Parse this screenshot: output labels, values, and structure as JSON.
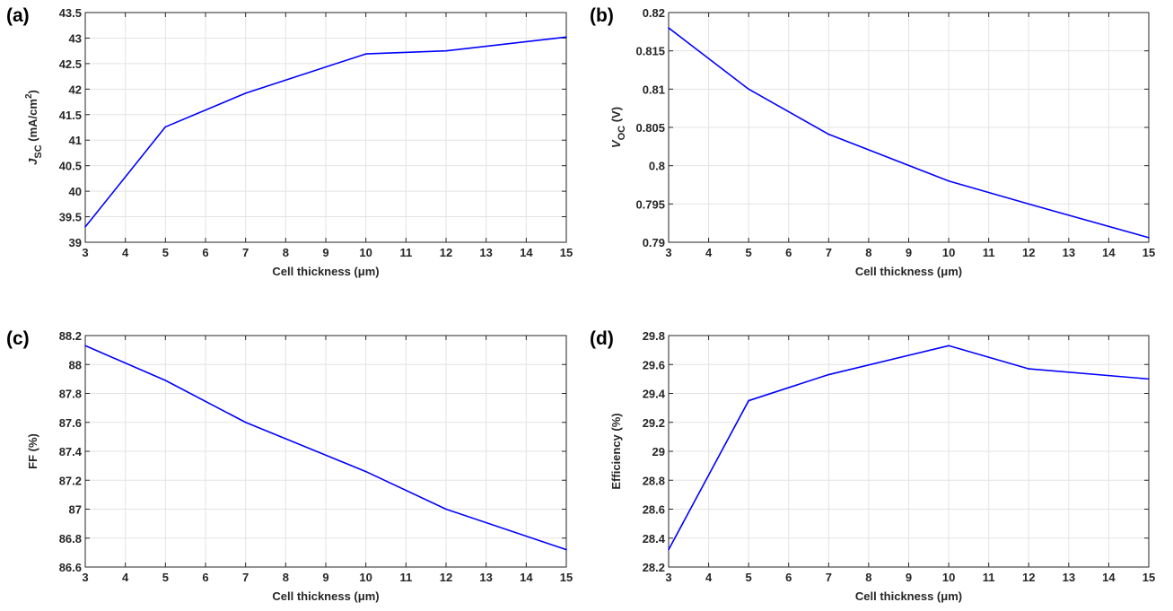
{
  "colors": {
    "series": "#0000ff",
    "axis": "#262626",
    "grid": "#e3e3e3"
  },
  "chart_data": [
    {
      "panel_label": "(a)",
      "type": "line",
      "xlabel": "Cell thickness (μm)",
      "ylabel": {
        "main": "J",
        "sub": "SC",
        "unit": " (mA/cm",
        "sup": "2",
        "close": ")"
      },
      "xlim": [
        3,
        15
      ],
      "ylim": [
        39,
        43.5
      ],
      "xticks": [
        3,
        4,
        5,
        6,
        7,
        8,
        9,
        10,
        11,
        12,
        13,
        14,
        15
      ],
      "yticks": [
        39,
        39.5,
        40,
        40.5,
        41,
        41.5,
        42,
        42.5,
        43,
        43.5
      ],
      "grid": true,
      "series": [
        {
          "x": [
            3,
            5,
            7,
            10,
            12,
            15
          ],
          "y": [
            39.3,
            41.26,
            41.92,
            42.69,
            42.75,
            43.02
          ]
        }
      ]
    },
    {
      "panel_label": "(b)",
      "type": "line",
      "xlabel": "Cell thickness (μm)",
      "ylabel": {
        "main": "V",
        "sub": "OC",
        "unit": " (V)",
        "sup": "",
        "close": ""
      },
      "xlim": [
        3,
        15
      ],
      "ylim": [
        0.79,
        0.82
      ],
      "xticks": [
        3,
        4,
        5,
        6,
        7,
        8,
        9,
        10,
        11,
        12,
        13,
        14,
        15
      ],
      "yticks": [
        0.79,
        0.795,
        0.8,
        0.805,
        0.81,
        0.815,
        0.82
      ],
      "grid": true,
      "series": [
        {
          "x": [
            3,
            5,
            7,
            10,
            12,
            15
          ],
          "y": [
            0.818,
            0.81,
            0.8041,
            0.798,
            0.795,
            0.7906
          ]
        }
      ]
    },
    {
      "panel_label": "(c)",
      "type": "line",
      "xlabel": "Cell thickness (μm)",
      "ylabel": {
        "main": "FF (%)",
        "sub": "",
        "unit": "",
        "sup": "",
        "close": ""
      },
      "xlim": [
        3,
        15
      ],
      "ylim": [
        86.6,
        88.2
      ],
      "xticks": [
        3,
        4,
        5,
        6,
        7,
        8,
        9,
        10,
        11,
        12,
        13,
        14,
        15
      ],
      "yticks": [
        86.6,
        86.8,
        87,
        87.2,
        87.4,
        87.6,
        87.8,
        88,
        88.2
      ],
      "grid": true,
      "series": [
        {
          "x": [
            3,
            5,
            7,
            10,
            12,
            15
          ],
          "y": [
            88.13,
            87.89,
            87.6,
            87.26,
            87.0,
            86.72
          ]
        }
      ]
    },
    {
      "panel_label": "(d)",
      "type": "line",
      "xlabel": "Cell thickness (μm)",
      "ylabel": {
        "main": "Efficiency (%)",
        "sub": "",
        "unit": "",
        "sup": "",
        "close": ""
      },
      "xlim": [
        3,
        15
      ],
      "ylim": [
        28.2,
        29.8
      ],
      "xticks": [
        3,
        4,
        5,
        6,
        7,
        8,
        9,
        10,
        11,
        12,
        13,
        14,
        15
      ],
      "yticks": [
        28.2,
        28.4,
        28.6,
        28.8,
        29,
        29.2,
        29.4,
        29.6,
        29.8
      ],
      "grid": true,
      "series": [
        {
          "x": [
            3,
            5,
            7,
            10,
            12,
            15
          ],
          "y": [
            28.32,
            29.35,
            29.53,
            29.73,
            29.57,
            29.5
          ]
        }
      ]
    }
  ]
}
